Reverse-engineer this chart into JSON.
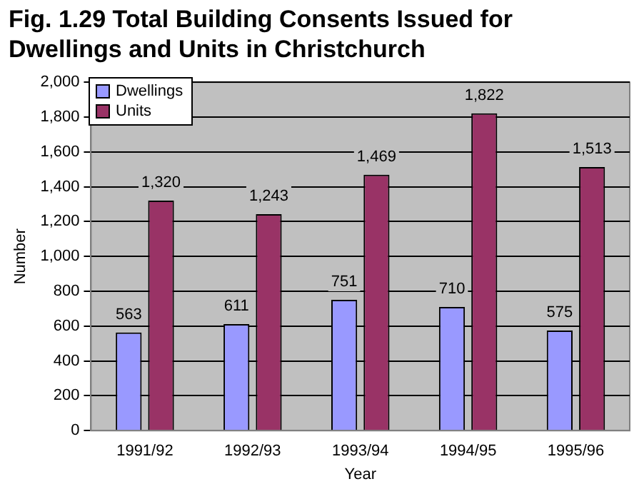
{
  "chart_data": {
    "type": "bar",
    "title": "Fig. 1.29 Total Building Consents Issued for Dwellings and Units in Christchurch",
    "xlabel": "Year",
    "ylabel": "Number",
    "categories": [
      "1991/92",
      "1992/93",
      "1993/94",
      "1994/95",
      "1995/96"
    ],
    "series": [
      {
        "name": "Dwellings",
        "color": "#9999ff",
        "values": [
          563,
          611,
          751,
          710,
          575
        ],
        "value_labels": [
          "563",
          "611",
          "751",
          "710",
          "575"
        ]
      },
      {
        "name": "Units",
        "color": "#993366",
        "values": [
          1320,
          1243,
          1469,
          1822,
          1513
        ],
        "value_labels": [
          "1,320",
          "1,243",
          "1,469",
          "1,822",
          "1,513"
        ]
      }
    ],
    "ylim": [
      0,
      2000
    ],
    "yticks": [
      {
        "value": 0,
        "label": "0"
      },
      {
        "value": 200,
        "label": "200"
      },
      {
        "value": 400,
        "label": "400"
      },
      {
        "value": 600,
        "label": "600"
      },
      {
        "value": 800,
        "label": "800"
      },
      {
        "value": 1000,
        "label": "1,000"
      },
      {
        "value": 1200,
        "label": "1,200"
      },
      {
        "value": 1400,
        "label": "1,400"
      },
      {
        "value": 1600,
        "label": "1,600"
      },
      {
        "value": 1800,
        "label": "1,800"
      },
      {
        "value": 2000,
        "label": "2,000"
      }
    ],
    "grid": "y",
    "legend": "top left"
  }
}
